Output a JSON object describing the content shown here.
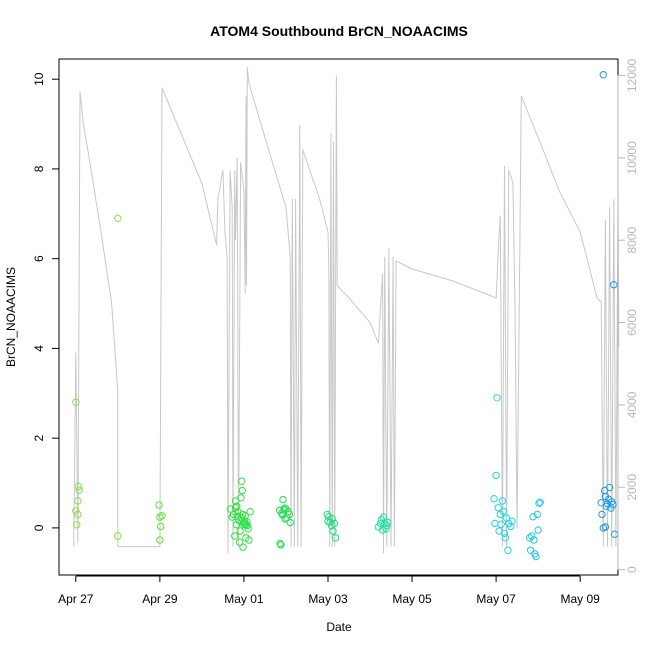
{
  "chart_data": {
    "type": "scatter",
    "title": "ATOM4 Southbound BrCN_NOAACIMS",
    "xlabel": "Date",
    "ylabel": "BrCN_NOAACIMS",
    "x_unit": "days",
    "xlim": [
      -0.4,
      12.9
    ],
    "ylim": [
      -1.05,
      10.45
    ],
    "y2lim": [
      -130,
      12400
    ],
    "x_ticks": [
      {
        "value": 0,
        "label": "Apr 27"
      },
      {
        "value": 2,
        "label": "Apr 29"
      },
      {
        "value": 4,
        "label": "May 01"
      },
      {
        "value": 6,
        "label": "May 03"
      },
      {
        "value": 8,
        "label": "May 05"
      },
      {
        "value": 10,
        "label": "May 07"
      },
      {
        "value": 12,
        "label": "May 09"
      }
    ],
    "y_ticks": [
      {
        "value": 0,
        "label": "0"
      },
      {
        "value": 2,
        "label": "2"
      },
      {
        "value": 4,
        "label": "4"
      },
      {
        "value": 6,
        "label": "6"
      },
      {
        "value": 8,
        "label": "8"
      },
      {
        "value": 10,
        "label": "10"
      }
    ],
    "y2_ticks": [
      {
        "value": 0,
        "label": "0"
      },
      {
        "value": 2000,
        "label": "2000"
      },
      {
        "value": 4000,
        "label": "4000"
      },
      {
        "value": 6000,
        "label": "6000"
      },
      {
        "value": 8000,
        "label": "8000"
      },
      {
        "value": 10000,
        "label": "10000"
      },
      {
        "value": 12000,
        "label": "12000"
      }
    ],
    "colors": {
      "altitude_line": "#c8c8c8",
      "axis": "#000000",
      "right_axis": "#b8b8b8"
    },
    "altitude_trace": [
      [
        -0.05,
        560
      ],
      [
        0.0,
        5270
      ],
      [
        0.05,
        650
      ],
      [
        0.1,
        11600
      ],
      [
        0.18,
        10820
      ],
      [
        0.35,
        9800
      ],
      [
        0.6,
        8200
      ],
      [
        0.85,
        6500
      ],
      [
        1.0,
        4330
      ],
      [
        1.0,
        560
      ],
      [
        2.0,
        560
      ],
      [
        2.05,
        11700
      ],
      [
        2.5,
        10600
      ],
      [
        3.0,
        9380
      ],
      [
        3.35,
        7880
      ],
      [
        3.38,
        9000
      ],
      [
        3.4,
        9080
      ],
      [
        3.46,
        9480
      ],
      [
        3.5,
        9700
      ],
      [
        3.55,
        8200
      ],
      [
        3.6,
        7600
      ],
      [
        3.62,
        400
      ],
      [
        3.67,
        9700
      ],
      [
        3.72,
        8800
      ],
      [
        3.74,
        560
      ],
      [
        3.78,
        9700
      ],
      [
        3.8,
        8000
      ],
      [
        3.84,
        10000
      ],
      [
        3.87,
        560
      ],
      [
        3.92,
        9900
      ],
      [
        4.0,
        9200
      ],
      [
        4.03,
        6700
      ],
      [
        4.05,
        11500
      ],
      [
        4.06,
        6900
      ],
      [
        4.08,
        12200
      ],
      [
        4.12,
        11800
      ],
      [
        4.5,
        10500
      ],
      [
        5.0,
        8800
      ],
      [
        5.1,
        7600
      ],
      [
        5.12,
        560
      ],
      [
        5.15,
        9000
      ],
      [
        5.2,
        560
      ],
      [
        5.23,
        9000
      ],
      [
        5.28,
        560
      ],
      [
        5.33,
        10800
      ],
      [
        5.36,
        560
      ],
      [
        5.4,
        10200
      ],
      [
        5.8,
        9000
      ],
      [
        6.0,
        8200
      ],
      [
        6.02,
        7400
      ],
      [
        6.04,
        560
      ],
      [
        6.07,
        10600
      ],
      [
        6.1,
        560
      ],
      [
        6.13,
        10400
      ],
      [
        6.16,
        560
      ],
      [
        6.2,
        12000
      ],
      [
        6.22,
        6900
      ],
      [
        6.5,
        6600
      ],
      [
        7.0,
        6000
      ],
      [
        7.2,
        5500
      ],
      [
        7.3,
        7200
      ],
      [
        7.32,
        400
      ],
      [
        7.35,
        7600
      ],
      [
        7.4,
        560
      ],
      [
        7.45,
        7800
      ],
      [
        7.5,
        560
      ],
      [
        7.55,
        7600
      ],
      [
        7.58,
        560
      ],
      [
        7.62,
        7500
      ],
      [
        8.0,
        7300
      ],
      [
        9.0,
        7000
      ],
      [
        10.0,
        6600
      ],
      [
        10.05,
        7700
      ],
      [
        10.1,
        8600
      ],
      [
        10.15,
        560
      ],
      [
        10.2,
        9800
      ],
      [
        10.25,
        560
      ],
      [
        10.3,
        9700
      ],
      [
        10.4,
        9400
      ],
      [
        10.45,
        6400
      ],
      [
        10.5,
        1000
      ],
      [
        10.6,
        11500
      ],
      [
        11.0,
        10500
      ],
      [
        11.5,
        9200
      ],
      [
        12.0,
        8200
      ],
      [
        12.4,
        6600
      ],
      [
        12.5,
        6500
      ],
      [
        12.55,
        560
      ],
      [
        12.6,
        8500
      ],
      [
        12.65,
        560
      ],
      [
        12.7,
        8800
      ],
      [
        12.75,
        560
      ],
      [
        12.8,
        9000
      ],
      [
        12.85,
        560
      ],
      [
        12.9,
        9100
      ],
      [
        12.92,
        5400
      ]
    ],
    "series": [
      {
        "color": "#88e048",
        "points": [
          [
            0.0,
            2.8
          ],
          [
            0.0,
            0.38
          ],
          [
            0.02,
            0.07
          ],
          [
            0.05,
            0.3
          ],
          [
            0.05,
            0.6
          ],
          [
            0.06,
            0.92
          ],
          [
            0.08,
            0.84
          ],
          [
            1.0,
            6.9
          ],
          [
            1.0,
            -0.18
          ]
        ]
      },
      {
        "color": "#60e030",
        "points": [
          [
            1.98,
            0.51
          ],
          [
            2.0,
            0.24
          ],
          [
            2.02,
            0.03
          ],
          [
            2.0,
            -0.27
          ],
          [
            2.05,
            0.27
          ]
        ]
      },
      {
        "color": "#30e040",
        "points": [
          [
            3.68,
            0.42
          ],
          [
            3.72,
            0.24
          ],
          [
            3.75,
            0.3
          ],
          [
            3.78,
            -0.18
          ],
          [
            3.8,
            0.45
          ],
          [
            3.8,
            0.6
          ],
          [
            3.82,
            0.07
          ],
          [
            3.83,
            0.48
          ],
          [
            3.85,
            0.25
          ],
          [
            3.86,
            0.36
          ],
          [
            3.88,
            0.17
          ],
          [
            3.9,
            -0.32
          ],
          [
            3.91,
            -0.07
          ],
          [
            3.93,
            0.67
          ],
          [
            3.94,
            0.22
          ],
          [
            3.95,
            1.04
          ],
          [
            3.96,
            0.83
          ],
          [
            3.97,
            0.3
          ],
          [
            3.98,
            -0.43
          ],
          [
            3.99,
            0.12
          ],
          [
            4.0,
            0.07
          ],
          [
            4.02,
            0.14
          ],
          [
            4.03,
            0.27
          ],
          [
            4.05,
            -0.22
          ]
        ]
      },
      {
        "color": "#30e050",
        "points": [
          [
            4.02,
            0.1
          ],
          [
            4.05,
            0.07
          ],
          [
            4.07,
            0.14
          ],
          [
            4.08,
            0.05
          ],
          [
            4.1,
            -0.02
          ],
          [
            4.12,
            -0.27
          ],
          [
            4.15,
            0.36
          ]
        ]
      },
      {
        "color": "#20e050",
        "points": [
          [
            4.85,
            0.39
          ],
          [
            4.86,
            -0.35
          ],
          [
            4.88,
            -0.38
          ],
          [
            4.9,
            0.33
          ],
          [
            4.92,
            0.29
          ],
          [
            4.93,
            0.63
          ],
          [
            4.95,
            0.4
          ],
          [
            4.97,
            0.44
          ],
          [
            4.98,
            0.2
          ],
          [
            5.0,
            0.42
          ],
          [
            5.02,
            0.22
          ],
          [
            5.05,
            0.36
          ],
          [
            5.08,
            0.3
          ],
          [
            5.1,
            0.12
          ]
        ]
      },
      {
        "color": "#20e080",
        "points": [
          [
            5.98,
            0.3
          ],
          [
            6.0,
            0.15
          ],
          [
            6.02,
            0.25
          ],
          [
            6.05,
            0.13
          ],
          [
            6.08,
            0.05
          ],
          [
            6.1,
            0.2
          ],
          [
            6.12,
            -0.07
          ],
          [
            6.15,
            0.1
          ],
          [
            6.18,
            -0.22
          ]
        ]
      },
      {
        "color": "#20e0a0",
        "points": [
          [
            7.2,
            0.02
          ],
          [
            7.25,
            0.1
          ],
          [
            7.27,
            0.18
          ],
          [
            7.3,
            -0.05
          ],
          [
            7.32,
            0.24
          ],
          [
            7.35,
            0.1
          ],
          [
            7.38,
            -0.02
          ],
          [
            7.4,
            0.05
          ],
          [
            7.42,
            0.12
          ]
        ]
      },
      {
        "color": "#20d8e0",
        "points": [
          [
            9.95,
            0.65
          ],
          [
            9.97,
            0.1
          ],
          [
            10.0,
            1.17
          ],
          [
            10.02,
            2.9
          ],
          [
            10.05,
            0.45
          ],
          [
            10.07,
            -0.07
          ],
          [
            10.1,
            0.3
          ],
          [
            10.12,
            0.08
          ],
          [
            10.15,
            0.6
          ],
          [
            10.17,
            0.37
          ],
          [
            10.2,
            -0.12
          ],
          [
            10.22,
            -0.22
          ],
          [
            10.25,
            0.22
          ],
          [
            10.28,
            -0.5
          ],
          [
            10.3,
            0.1
          ],
          [
            10.35,
            0.03
          ],
          [
            10.38,
            0.15
          ]
        ]
      },
      {
        "color": "#20c8e8",
        "points": [
          [
            10.8,
            -0.22
          ],
          [
            10.82,
            -0.5
          ],
          [
            10.85,
            -0.18
          ],
          [
            10.88,
            0.25
          ],
          [
            10.9,
            -0.27
          ],
          [
            10.92,
            -0.58
          ],
          [
            10.95,
            -0.64
          ],
          [
            10.98,
            0.3
          ],
          [
            11.0,
            -0.05
          ],
          [
            11.02,
            0.55
          ],
          [
            11.05,
            0.57
          ]
        ]
      },
      {
        "color": "#2098e8",
        "points": [
          [
            12.55,
            10.1
          ],
          [
            12.5,
            0.56
          ],
          [
            12.52,
            0.3
          ],
          [
            12.55,
            0.0
          ],
          [
            12.58,
            0.83
          ],
          [
            12.6,
            0.7
          ],
          [
            12.62,
            0.48
          ],
          [
            12.65,
            0.54
          ],
          [
            12.68,
            0.64
          ],
          [
            12.7,
            0.9
          ],
          [
            12.73,
            0.44
          ],
          [
            12.75,
            0.58
          ],
          [
            12.78,
            0.52
          ],
          [
            12.8,
            5.42
          ],
          [
            12.82,
            -0.14
          ],
          [
            12.6,
            0.02
          ]
        ]
      }
    ]
  }
}
